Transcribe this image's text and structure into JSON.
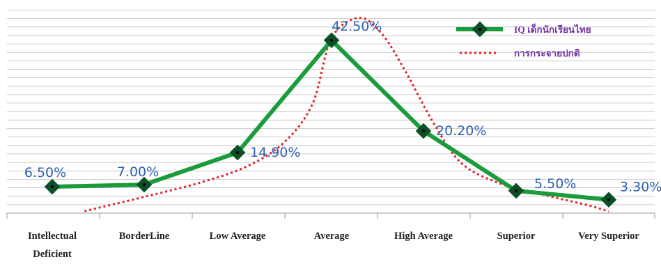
{
  "chart_data": {
    "type": "line",
    "categories": [
      [
        "Intellectual",
        "Deficient"
      ],
      [
        "BorderLine"
      ],
      [
        "Low   Average"
      ],
      [
        "Average"
      ],
      [
        "High   Average"
      ],
      [
        "Superior"
      ],
      [
        "Very   Superior"
      ]
    ],
    "series": [
      {
        "name": "IQ  เด็กนักเรียนไทย",
        "values": [
          6.5,
          7.0,
          14.9,
          42.5,
          20.2,
          5.5,
          3.3
        ],
        "labels": [
          "6.50%",
          "7.00%",
          "14.90%",
          "42.50%",
          "20.20%",
          "5.50%",
          "3.30%"
        ],
        "color": "#1a9b3c",
        "marker_color": "#0b4f24",
        "style": "solid"
      },
      {
        "name": "การกระจายปกติ",
        "color": "#e0202a",
        "style": "dotted",
        "curve": [
          [
            0.35,
            0.5
          ],
          [
            1.0,
            4.0
          ],
          [
            1.6,
            7.5
          ],
          [
            2.1,
            11.5
          ],
          [
            2.5,
            17.5
          ],
          [
            2.8,
            27.0
          ],
          [
            3.0,
            43.0
          ],
          [
            3.3,
            48.0
          ],
          [
            3.55,
            44.0
          ],
          [
            3.8,
            35.0
          ],
          [
            4.1,
            22.5
          ],
          [
            4.4,
            12.5
          ],
          [
            4.8,
            7.5
          ],
          [
            5.3,
            4.5
          ],
          [
            5.8,
            1.8
          ],
          [
            6.1,
            0.4
          ]
        ]
      }
    ],
    "ylim": [
      0,
      50
    ],
    "grid": true,
    "legend": "top-right",
    "title": "",
    "xlabel": "",
    "ylabel": ""
  }
}
